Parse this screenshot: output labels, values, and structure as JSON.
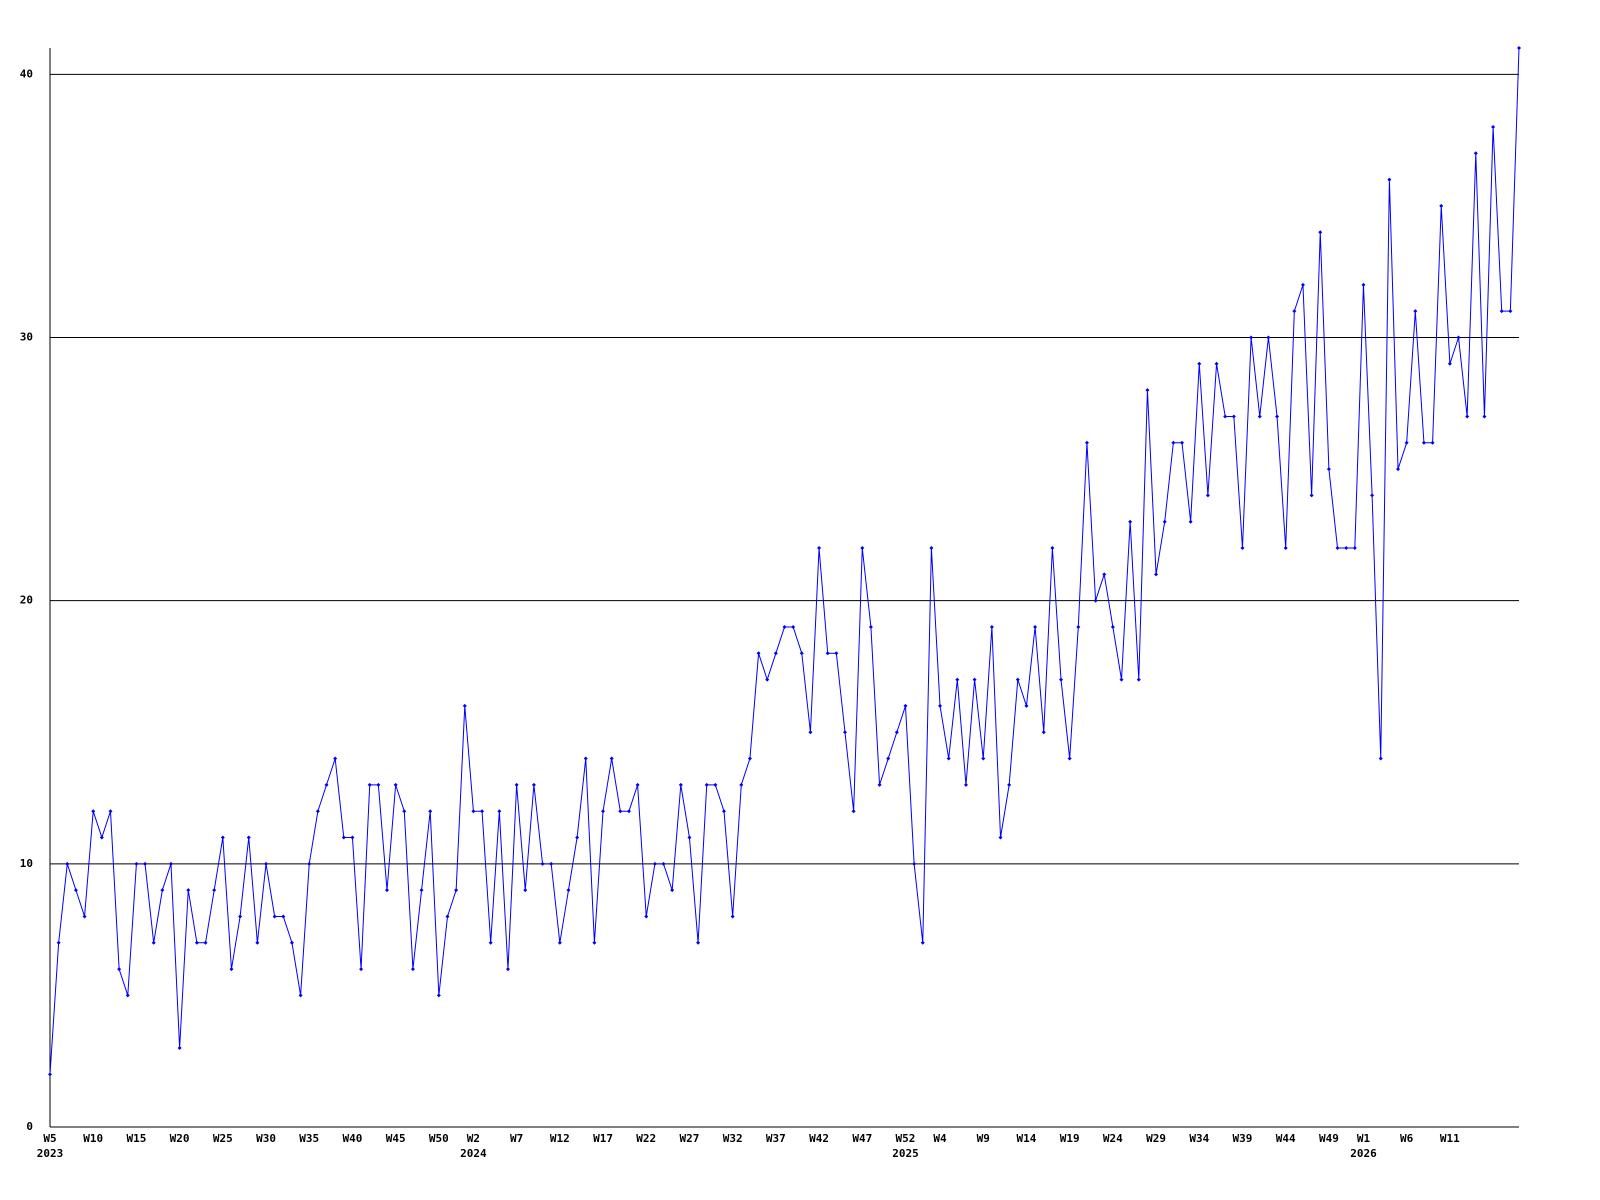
{
  "chart_data": {
    "type": "line",
    "categories": [
      "W5",
      null,
      null,
      null,
      null,
      "W10",
      null,
      null,
      null,
      null,
      "W15",
      null,
      null,
      null,
      null,
      "W20",
      null,
      null,
      null,
      null,
      "W25",
      null,
      null,
      null,
      null,
      "W30",
      null,
      null,
      null,
      null,
      "W35",
      null,
      null,
      null,
      null,
      "W40",
      null,
      null,
      null,
      null,
      "W45",
      null,
      null,
      null,
      null,
      "W50",
      null,
      null,
      null,
      "W2",
      null,
      null,
      null,
      null,
      "W7",
      null,
      null,
      null,
      null,
      "W12",
      null,
      null,
      null,
      null,
      "W17",
      null,
      null,
      null,
      null,
      "W22",
      null,
      null,
      null,
      null,
      "W27",
      null,
      null,
      null,
      null,
      "W32",
      null,
      null,
      null,
      null,
      "W37",
      null,
      null,
      null,
      null,
      "W42",
      null,
      null,
      null,
      null,
      "W47",
      null,
      null,
      null,
      null,
      "W52",
      null,
      null,
      null,
      "W4",
      null,
      null,
      null,
      null,
      "W9",
      null,
      null,
      null,
      null,
      "W14",
      null,
      null,
      null,
      null,
      "W19",
      null,
      null,
      null,
      null,
      "W24",
      null,
      null,
      null,
      null,
      "W29",
      null,
      null,
      null,
      null,
      "W34",
      null,
      null,
      null,
      null,
      "W39",
      null,
      null,
      null,
      null,
      "W44",
      null,
      null,
      null,
      null,
      "W49",
      null,
      null,
      null,
      "W1",
      null,
      null,
      null,
      null,
      "W6",
      null,
      null,
      null,
      null,
      "W11",
      null,
      null,
      null,
      null,
      null,
      null,
      null,
      null
    ],
    "years": [
      "2023",
      null,
      null,
      null,
      null,
      null,
      null,
      null,
      null,
      null,
      null,
      null,
      null,
      null,
      null,
      null,
      null,
      null,
      null,
      null,
      null,
      null,
      null,
      null,
      null,
      null,
      null,
      null,
      null,
      null,
      null,
      null,
      null,
      null,
      null,
      null,
      null,
      null,
      null,
      null,
      null,
      null,
      null,
      null,
      null,
      null,
      null,
      null,
      null,
      "2024",
      null,
      null,
      null,
      null,
      null,
      null,
      null,
      null,
      null,
      null,
      null,
      null,
      null,
      null,
      null,
      null,
      null,
      null,
      null,
      null,
      null,
      null,
      null,
      null,
      null,
      null,
      null,
      null,
      null,
      null,
      null,
      null,
      null,
      null,
      null,
      null,
      null,
      null,
      null,
      null,
      null,
      null,
      null,
      null,
      null,
      null,
      null,
      null,
      null,
      "2025",
      null,
      null,
      null,
      null,
      null,
      null,
      null,
      null,
      null,
      null,
      null,
      null,
      null,
      null,
      null,
      null,
      null,
      null,
      null,
      null,
      null,
      null,
      null,
      null,
      null,
      null,
      null,
      null,
      null,
      null,
      null,
      null,
      null,
      null,
      null,
      null,
      null,
      null,
      null,
      null,
      null,
      null,
      null,
      null,
      null,
      null,
      null,
      null,
      null,
      null,
      null,
      null,
      "2026",
      null,
      null,
      null,
      null,
      null,
      null,
      null,
      null,
      null,
      null,
      null,
      null,
      null,
      null,
      null,
      null,
      null,
      null
    ],
    "series": [
      {
        "color": "#0000ff",
        "values": [
          2,
          7,
          10,
          9,
          8,
          12,
          11,
          12,
          6,
          5,
          10,
          10,
          7,
          9,
          10,
          3,
          9,
          7,
          7,
          9,
          11,
          6,
          8,
          11,
          7,
          10,
          8,
          8,
          7,
          5,
          10,
          12,
          13,
          14,
          11,
          11,
          6,
          13,
          13,
          9,
          13,
          12,
          6,
          9,
          12,
          5,
          8,
          9,
          16,
          12,
          12,
          7,
          12,
          6,
          13,
          9,
          13,
          10,
          10,
          7,
          9,
          11,
          14,
          7,
          12,
          14,
          12,
          12,
          13,
          8,
          10,
          10,
          9,
          13,
          11,
          7,
          13,
          13,
          12,
          8,
          13,
          14,
          18,
          17,
          18,
          19,
          19,
          18,
          15,
          22,
          18,
          18,
          15,
          12,
          22,
          19,
          13,
          14,
          15,
          16,
          10,
          7,
          22,
          16,
          14,
          17,
          13,
          17,
          14,
          19,
          11,
          13,
          17,
          16,
          19,
          15,
          22,
          17,
          14,
          19,
          26,
          20,
          21,
          19,
          17,
          23,
          17,
          28,
          21,
          23,
          26,
          26,
          23,
          29,
          24,
          29,
          27,
          27,
          22,
          30,
          27,
          30,
          27,
          22,
          31,
          32,
          24,
          34,
          25,
          22,
          22,
          22,
          32,
          24,
          14,
          36,
          25,
          26,
          31,
          26,
          26,
          35,
          29,
          30,
          27,
          37,
          27,
          38,
          31,
          31,
          41
        ]
      }
    ],
    "ylim": [
      0,
      41
    ],
    "yticks": [
      0,
      10,
      20,
      30,
      40
    ],
    "grid": true
  }
}
